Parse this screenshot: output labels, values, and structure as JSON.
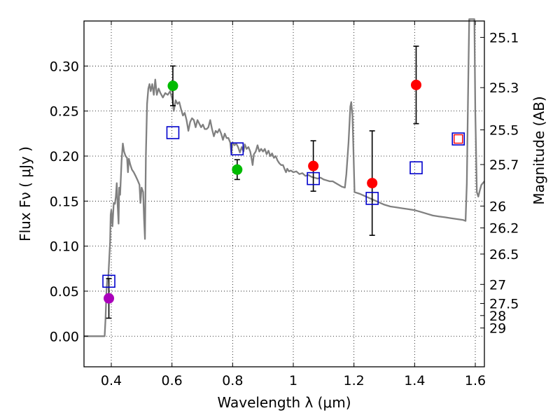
{
  "chart_data": {
    "type": "scatter",
    "title": "",
    "xlabel": "Wavelength  λ (μm)",
    "ylabel": "Flux  Fν  ( μJy )",
    "y2label": "Magnitude (AB)",
    "xlim": [
      0.31,
      1.63
    ],
    "ylim": [
      -0.034,
      0.35
    ],
    "grid": true,
    "x_ticks": [
      {
        "value": 0.4,
        "label": "0.4"
      },
      {
        "value": 0.6,
        "label": "0.6"
      },
      {
        "value": 0.8,
        "label": "0.8"
      },
      {
        "value": 1.0,
        "label": "1"
      },
      {
        "value": 1.2,
        "label": "1.2"
      },
      {
        "value": 1.4,
        "label": "1.4"
      },
      {
        "value": 1.6,
        "label": "1.6"
      }
    ],
    "y_ticks": [
      {
        "value": 0.0,
        "label": "0.00"
      },
      {
        "value": 0.05,
        "label": "0.05"
      },
      {
        "value": 0.1,
        "label": "0.10"
      },
      {
        "value": 0.15,
        "label": "0.15"
      },
      {
        "value": 0.2,
        "label": "0.20"
      },
      {
        "value": 0.25,
        "label": "0.25"
      },
      {
        "value": 0.3,
        "label": "0.30"
      }
    ],
    "mag_ticks": [
      {
        "value": 0.3318,
        "label": "25.1"
      },
      {
        "value": 0.276,
        "label": "25.3"
      },
      {
        "value": 0.2291,
        "label": "25.5"
      },
      {
        "value": 0.1906,
        "label": "25.7"
      },
      {
        "value": 0.1445,
        "label": "26"
      },
      {
        "value": 0.1202,
        "label": "26.2"
      },
      {
        "value": 0.0912,
        "label": "26.5"
      },
      {
        "value": 0.0575,
        "label": "27"
      },
      {
        "value": 0.0363,
        "label": "27.5"
      },
      {
        "value": 0.0229,
        "label": "28"
      },
      {
        "value": 0.0091,
        "label": "29"
      }
    ],
    "observed_points": [
      {
        "x": 0.392,
        "y": 0.042,
        "err": 0.022,
        "color": "#aa00bb"
      },
      {
        "x": 0.603,
        "y": 0.278,
        "err": 0.022,
        "color": "#00bb00"
      },
      {
        "x": 0.815,
        "y": 0.185,
        "err": 0.011,
        "color": "#00bb00"
      },
      {
        "x": 1.066,
        "y": 0.189,
        "err": 0.028,
        "color": "#ff0000"
      },
      {
        "x": 1.26,
        "y": 0.17,
        "err": 0.058,
        "color": "#ff0000"
      },
      {
        "x": 1.405,
        "y": 0.279,
        "err": 0.043,
        "color": "#ff0000"
      },
      {
        "x": 1.544,
        "y": 0.219,
        "err": 0.0,
        "color": "#ff0000"
      }
    ],
    "model_photometry": [
      {
        "x": 0.392,
        "y": 0.061
      },
      {
        "x": 0.603,
        "y": 0.226
      },
      {
        "x": 0.815,
        "y": 0.208
      },
      {
        "x": 1.066,
        "y": 0.175
      },
      {
        "x": 1.26,
        "y": 0.153
      },
      {
        "x": 1.405,
        "y": 0.187
      },
      {
        "x": 1.544,
        "y": 0.219
      }
    ],
    "template_spectrum": {
      "color": "#808080",
      "points": [
        [
          0.31,
          0.0
        ],
        [
          0.378,
          0.0
        ],
        [
          0.381,
          0.02
        ],
        [
          0.384,
          0.05
        ],
        [
          0.387,
          0.063
        ],
        [
          0.39,
          0.065
        ],
        [
          0.393,
          0.085
        ],
        [
          0.396,
          0.105
        ],
        [
          0.398,
          0.135
        ],
        [
          0.4,
          0.14
        ],
        [
          0.404,
          0.122
        ],
        [
          0.408,
          0.148
        ],
        [
          0.412,
          0.147
        ],
        [
          0.415,
          0.155
        ],
        [
          0.418,
          0.17
        ],
        [
          0.421,
          0.145
        ],
        [
          0.424,
          0.125
        ],
        [
          0.426,
          0.165
        ],
        [
          0.429,
          0.157
        ],
        [
          0.434,
          0.195
        ],
        [
          0.438,
          0.214
        ],
        [
          0.442,
          0.205
        ],
        [
          0.447,
          0.2
        ],
        [
          0.452,
          0.198
        ],
        [
          0.455,
          0.182
        ],
        [
          0.458,
          0.197
        ],
        [
          0.463,
          0.19
        ],
        [
          0.468,
          0.185
        ],
        [
          0.474,
          0.182
        ],
        [
          0.48,
          0.178
        ],
        [
          0.487,
          0.173
        ],
        [
          0.493,
          0.168
        ],
        [
          0.496,
          0.148
        ],
        [
          0.5,
          0.165
        ],
        [
          0.505,
          0.16
        ],
        [
          0.508,
          0.13
        ],
        [
          0.511,
          0.108
        ],
        [
          0.514,
          0.2
        ],
        [
          0.518,
          0.258
        ],
        [
          0.522,
          0.275
        ],
        [
          0.526,
          0.28
        ],
        [
          0.53,
          0.272
        ],
        [
          0.535,
          0.28
        ],
        [
          0.54,
          0.268
        ],
        [
          0.545,
          0.285
        ],
        [
          0.55,
          0.268
        ],
        [
          0.556,
          0.275
        ],
        [
          0.562,
          0.27
        ],
        [
          0.57,
          0.265
        ],
        [
          0.578,
          0.27
        ],
        [
          0.586,
          0.268
        ],
        [
          0.594,
          0.272
        ],
        [
          0.602,
          0.262
        ],
        [
          0.606,
          0.25
        ],
        [
          0.612,
          0.262
        ],
        [
          0.618,
          0.258
        ],
        [
          0.624,
          0.26
        ],
        [
          0.63,
          0.252
        ],
        [
          0.636,
          0.245
        ],
        [
          0.642,
          0.248
        ],
        [
          0.648,
          0.24
        ],
        [
          0.654,
          0.228
        ],
        [
          0.66,
          0.238
        ],
        [
          0.666,
          0.242
        ],
        [
          0.672,
          0.24
        ],
        [
          0.678,
          0.232
        ],
        [
          0.684,
          0.24
        ],
        [
          0.69,
          0.236
        ],
        [
          0.696,
          0.232
        ],
        [
          0.702,
          0.235
        ],
        [
          0.708,
          0.23
        ],
        [
          0.714,
          0.23
        ],
        [
          0.72,
          0.232
        ],
        [
          0.726,
          0.24
        ],
        [
          0.732,
          0.23
        ],
        [
          0.738,
          0.222
        ],
        [
          0.744,
          0.228
        ],
        [
          0.75,
          0.226
        ],
        [
          0.756,
          0.23
        ],
        [
          0.762,
          0.225
        ],
        [
          0.768,
          0.218
        ],
        [
          0.774,
          0.225
        ],
        [
          0.78,
          0.22
        ],
        [
          0.786,
          0.22
        ],
        [
          0.792,
          0.215
        ],
        [
          0.796,
          0.203
        ],
        [
          0.8,
          0.215
        ],
        [
          0.806,
          0.212
        ],
        [
          0.812,
          0.214
        ],
        [
          0.818,
          0.21
        ],
        [
          0.824,
          0.204
        ],
        [
          0.83,
          0.21
        ],
        [
          0.836,
          0.205
        ],
        [
          0.84,
          0.213
        ],
        [
          0.846,
          0.208
        ],
        [
          0.852,
          0.21
        ],
        [
          0.858,
          0.205
        ],
        [
          0.862,
          0.198
        ],
        [
          0.866,
          0.19
        ],
        [
          0.87,
          0.202
        ],
        [
          0.876,
          0.205
        ],
        [
          0.882,
          0.212
        ],
        [
          0.888,
          0.205
        ],
        [
          0.894,
          0.208
        ],
        [
          0.9,
          0.205
        ],
        [
          0.906,
          0.208
        ],
        [
          0.912,
          0.202
        ],
        [
          0.918,
          0.206
        ],
        [
          0.924,
          0.2
        ],
        [
          0.93,
          0.203
        ],
        [
          0.936,
          0.198
        ],
        [
          0.942,
          0.2
        ],
        [
          0.948,
          0.195
        ],
        [
          0.954,
          0.192
        ],
        [
          0.96,
          0.19
        ],
        [
          0.966,
          0.19
        ],
        [
          0.972,
          0.185
        ],
        [
          0.976,
          0.182
        ],
        [
          0.98,
          0.186
        ],
        [
          0.986,
          0.183
        ],
        [
          0.992,
          0.184
        ],
        [
          1.0,
          0.182
        ],
        [
          1.01,
          0.183
        ],
        [
          1.02,
          0.18
        ],
        [
          1.03,
          0.181
        ],
        [
          1.04,
          0.178
        ],
        [
          1.05,
          0.179
        ],
        [
          1.06,
          0.177
        ],
        [
          1.07,
          0.176
        ],
        [
          1.08,
          0.175
        ],
        [
          1.09,
          0.176
        ],
        [
          1.1,
          0.174
        ],
        [
          1.11,
          0.173
        ],
        [
          1.12,
          0.172
        ],
        [
          1.13,
          0.172
        ],
        [
          1.14,
          0.17
        ],
        [
          1.15,
          0.168
        ],
        [
          1.16,
          0.166
        ],
        [
          1.17,
          0.165
        ],
        [
          1.175,
          0.18
        ],
        [
          1.182,
          0.215
        ],
        [
          1.188,
          0.255
        ],
        [
          1.191,
          0.26
        ],
        [
          1.195,
          0.245
        ],
        [
          1.198,
          0.21
        ],
        [
          1.202,
          0.16
        ],
        [
          1.22,
          0.158
        ],
        [
          1.24,
          0.155
        ],
        [
          1.26,
          0.152
        ],
        [
          1.28,
          0.149
        ],
        [
          1.3,
          0.146
        ],
        [
          1.32,
          0.144
        ],
        [
          1.34,
          0.143
        ],
        [
          1.36,
          0.142
        ],
        [
          1.38,
          0.141
        ],
        [
          1.4,
          0.14
        ],
        [
          1.42,
          0.138
        ],
        [
          1.44,
          0.136
        ],
        [
          1.46,
          0.134
        ],
        [
          1.48,
          0.133
        ],
        [
          1.5,
          0.132
        ],
        [
          1.52,
          0.131
        ],
        [
          1.54,
          0.13
        ],
        [
          1.56,
          0.129
        ],
        [
          1.568,
          0.128
        ],
        [
          1.572,
          0.17
        ],
        [
          1.576,
          0.265
        ],
        [
          1.58,
          0.352
        ],
        [
          1.59,
          0.352
        ],
        [
          1.597,
          0.352
        ],
        [
          1.6,
          0.25
        ],
        [
          1.605,
          0.16
        ],
        [
          1.61,
          0.155
        ],
        [
          1.615,
          0.162
        ],
        [
          1.62,
          0.168
        ],
        [
          1.63,
          0.172
        ]
      ]
    }
  }
}
